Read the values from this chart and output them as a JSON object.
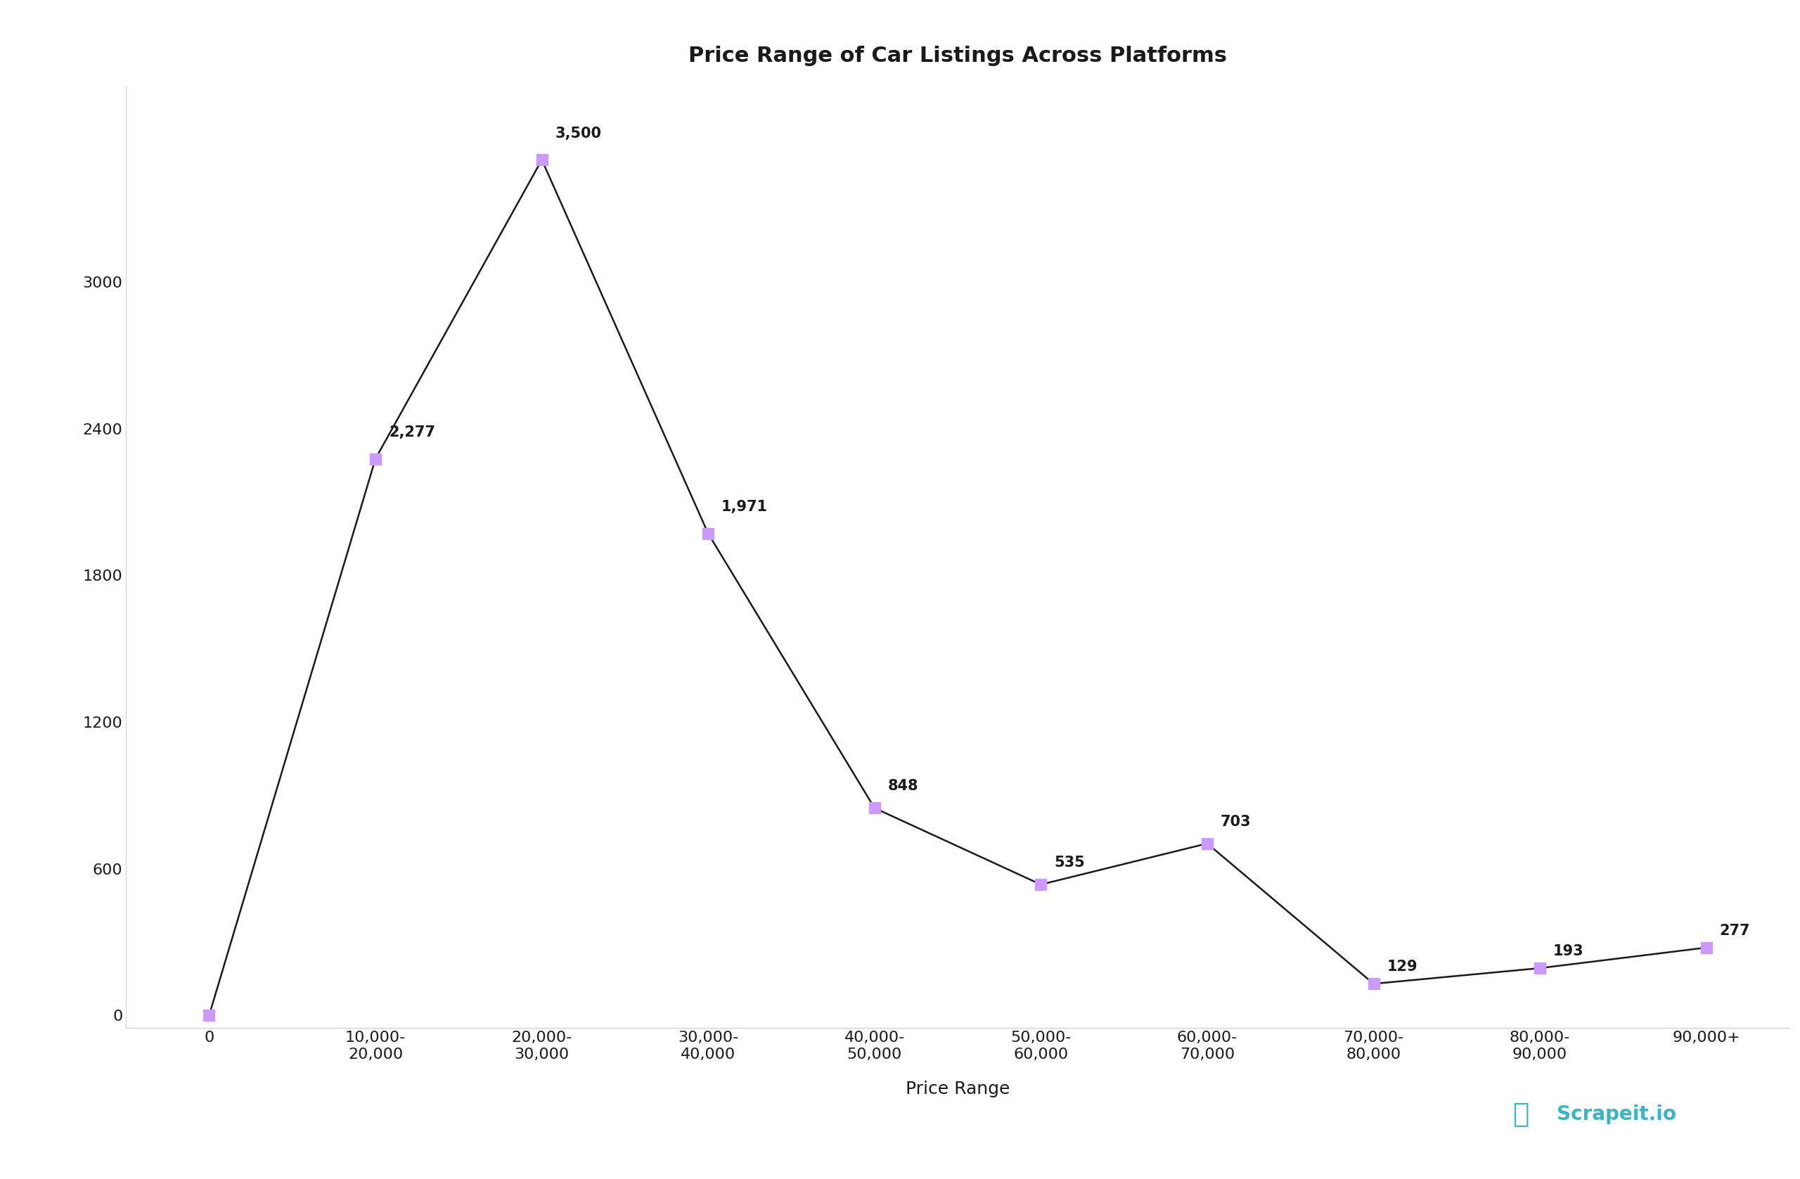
{
  "title": "Price Range of Car Listings Across Platforms",
  "xlabel": "Price Range",
  "ylabel": "",
  "background_color": "#ffffff",
  "plot_bg_color": "#ffffff",
  "text_color": "#1a1a1a",
  "marker_color": "#cc99ff",
  "line_color": "#1a1a1a",
  "annotation_color": "#1a1a1a",
  "categories": [
    "0",
    "10,000-\n20,000",
    "20,000-\n30,000",
    "30,000-\n40,000",
    "40,000-\n50,000",
    "50,000-\n60,000",
    "60,000-\n70,000",
    "70,000-\n80,000",
    "80,000-\n90,000",
    "90,000+"
  ],
  "x_values": [
    0,
    1,
    2,
    3,
    4,
    5,
    6,
    7,
    8,
    9
  ],
  "y_values": [
    0,
    2277,
    3500,
    1971,
    848,
    535,
    703,
    129,
    193,
    277
  ],
  "annotations": [
    "",
    "2,277",
    "3,500",
    "1,971",
    "848",
    "535",
    "703",
    "129",
    "193",
    "277"
  ],
  "yticks": [
    0,
    600,
    1200,
    1800,
    2400,
    3000
  ],
  "ylim": [
    -50,
    3800
  ],
  "title_fontsize": 22,
  "axis_fontsize": 18,
  "tick_fontsize": 16,
  "annotation_fontsize": 15,
  "watermark_text": "Scrapeit.io",
  "watermark_color": "#3ab5c6"
}
